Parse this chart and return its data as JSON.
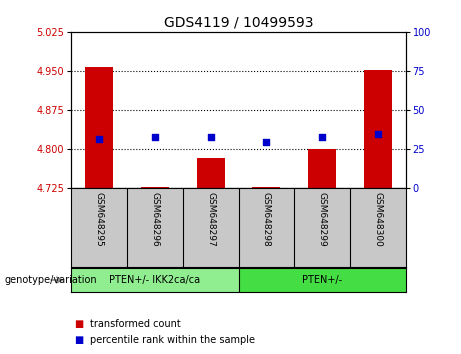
{
  "title": "GDS4119 / 10499593",
  "samples": [
    "GSM648295",
    "GSM648296",
    "GSM648297",
    "GSM648298",
    "GSM648299",
    "GSM648300"
  ],
  "bar_values": [
    4.958,
    4.727,
    4.782,
    4.727,
    4.8,
    4.952
  ],
  "bar_base": 4.725,
  "dot_values": [
    4.818,
    4.822,
    4.822,
    4.813,
    4.822,
    4.828
  ],
  "ylim_left": [
    4.725,
    5.025
  ],
  "ylim_right": [
    0,
    100
  ],
  "yticks_left": [
    4.725,
    4.8,
    4.875,
    4.95,
    5.025
  ],
  "yticks_right": [
    0,
    25,
    50,
    75,
    100
  ],
  "bar_color": "#cc0000",
  "dot_color": "#0000cc",
  "group1_label": "PTEN+/- IKK2ca/ca",
  "group2_label": "PTEN+/-",
  "group1_indices": [
    0,
    1,
    2
  ],
  "group2_indices": [
    3,
    4,
    5
  ],
  "group1_color": "#90ee90",
  "group2_color": "#44dd44",
  "xticklabel_bg": "#c8c8c8",
  "legend_bar_label": "transformed count",
  "legend_dot_label": "percentile rank within the sample",
  "genotype_label": "genotype/variation",
  "title_fontsize": 10,
  "tick_fontsize": 7,
  "label_fontsize": 7,
  "bar_width": 0.5
}
